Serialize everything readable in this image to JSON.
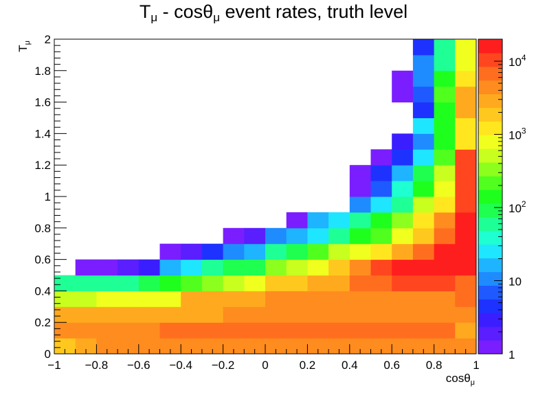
{
  "title": {
    "main": "T",
    "sub1": "μ",
    "mid": " - cosθ",
    "sub2": "μ",
    "tail": " event rates, truth level"
  },
  "chart_data": {
    "type": "heatmap",
    "title": "Tμ - cosθμ event rates, truth level",
    "xlabel": {
      "main": "cosθ",
      "sub": "μ"
    },
    "ylabel": {
      "main": "T",
      "sub": "μ"
    },
    "xlim": [
      -1,
      1
    ],
    "ylim": [
      0,
      2
    ],
    "x_bins": {
      "start": -1,
      "width": 0.1,
      "count": 20
    },
    "y_bins": {
      "start": 0,
      "width": 0.1,
      "count": 20
    },
    "x_ticks": [
      {
        "v": -1,
        "label": "−1"
      },
      {
        "v": -0.8,
        "label": "−0.8"
      },
      {
        "v": -0.6,
        "label": "−0.6"
      },
      {
        "v": -0.4,
        "label": "−0.4"
      },
      {
        "v": -0.2,
        "label": "−0.2"
      },
      {
        "v": 0,
        "label": "0"
      },
      {
        "v": 0.2,
        "label": "0.2"
      },
      {
        "v": 0.4,
        "label": "0.4"
      },
      {
        "v": 0.6,
        "label": "0.6"
      },
      {
        "v": 0.8,
        "label": "0.8"
      },
      {
        "v": 1,
        "label": "1"
      }
    ],
    "y_ticks": [
      {
        "v": 0,
        "label": "0"
      },
      {
        "v": 0.2,
        "label": "0.2"
      },
      {
        "v": 0.4,
        "label": "0.4"
      },
      {
        "v": 0.6,
        "label": "0.6"
      },
      {
        "v": 0.8,
        "label": "0.8"
      },
      {
        "v": 1,
        "label": "1"
      },
      {
        "v": 1.2,
        "label": "1.2"
      },
      {
        "v": 1.4,
        "label": "1.4"
      },
      {
        "v": 1.6,
        "label": "1.6"
      },
      {
        "v": 1.8,
        "label": "1.8"
      },
      {
        "v": 2,
        "label": "2"
      }
    ],
    "z_scale": "log",
    "zlim": [
      1,
      20000
    ],
    "z_ticks": [
      {
        "v": 1,
        "base": "1",
        "exp": ""
      },
      {
        "v": 10,
        "base": "10",
        "exp": ""
      },
      {
        "v": 100,
        "base": "10",
        "exp": "2"
      },
      {
        "v": 1000,
        "base": "10",
        "exp": "3"
      },
      {
        "v": 10000,
        "base": "10",
        "exp": "4"
      }
    ],
    "palette": [
      "#7a1eff",
      "#5a1eff",
      "#3a1eff",
      "#1e32ff",
      "#1e5aff",
      "#1e8cff",
      "#1eb4ff",
      "#1ee6ff",
      "#1effd2",
      "#1eff96",
      "#1eff50",
      "#1eff1e",
      "#50ff1e",
      "#8cff1e",
      "#c8ff1e",
      "#f0ff1e",
      "#ffe61e",
      "#ffc81e",
      "#ffaa1e",
      "#ff8c1e",
      "#ff6e1e",
      "#ff461e",
      "#ff1e1e"
    ],
    "cells": [
      [
        17,
        18,
        19,
        19,
        19,
        19,
        19,
        19,
        19,
        19,
        19,
        19,
        19,
        19,
        19,
        19,
        19,
        19,
        19,
        19
      ],
      [
        19,
        19,
        19,
        19,
        19,
        20,
        20,
        20,
        20,
        20,
        20,
        20,
        20,
        20,
        20,
        20,
        20,
        20,
        20,
        18
      ],
      [
        18,
        18,
        18,
        18,
        18,
        18,
        18,
        18,
        19,
        19,
        19,
        19,
        19,
        19,
        19,
        19,
        19,
        19,
        19,
        19
      ],
      [
        14,
        14,
        15,
        15,
        15,
        15,
        18,
        18,
        18,
        18,
        19,
        19,
        19,
        19,
        19,
        19,
        19,
        19,
        19,
        20
      ],
      [
        9,
        9,
        9,
        9,
        10,
        11,
        12,
        13,
        14,
        15,
        17,
        17,
        18,
        18,
        20,
        20,
        21,
        21,
        21,
        20
      ],
      [
        null,
        0,
        0,
        1,
        2,
        6,
        7,
        9,
        10,
        10,
        13,
        14,
        15,
        17,
        19,
        21,
        22,
        22,
        22,
        22
      ],
      [
        null,
        null,
        null,
        null,
        null,
        0,
        1,
        3,
        5,
        6,
        9,
        10,
        12,
        14,
        15,
        16,
        18,
        20,
        22,
        22
      ],
      [
        null,
        null,
        null,
        null,
        null,
        null,
        null,
        null,
        0,
        1,
        5,
        6,
        7,
        9,
        11,
        12,
        15,
        17,
        20,
        22
      ],
      [
        null,
        null,
        null,
        null,
        null,
        null,
        null,
        null,
        null,
        null,
        null,
        0,
        6,
        7,
        9,
        11,
        13,
        16,
        19,
        22
      ],
      [
        null,
        null,
        null,
        null,
        null,
        null,
        null,
        null,
        null,
        null,
        null,
        null,
        null,
        null,
        5,
        7,
        9,
        14,
        16,
        21
      ],
      [
        null,
        null,
        null,
        null,
        null,
        null,
        null,
        null,
        null,
        null,
        null,
        null,
        null,
        null,
        0,
        4,
        8,
        11,
        15,
        21
      ],
      [
        null,
        null,
        null,
        null,
        null,
        null,
        null,
        null,
        null,
        null,
        null,
        null,
        null,
        null,
        0,
        3,
        6,
        10,
        14,
        21
      ],
      [
        null,
        null,
        null,
        null,
        null,
        null,
        null,
        null,
        null,
        null,
        null,
        null,
        null,
        null,
        null,
        0,
        3,
        7,
        12,
        21
      ],
      [
        null,
        null,
        null,
        null,
        null,
        null,
        null,
        null,
        null,
        null,
        null,
        null,
        null,
        null,
        null,
        null,
        2,
        5,
        11,
        16
      ],
      [
        null,
        null,
        null,
        null,
        null,
        null,
        null,
        null,
        null,
        null,
        null,
        null,
        null,
        null,
        null,
        null,
        null,
        7,
        11,
        16
      ],
      [
        null,
        null,
        null,
        null,
        null,
        null,
        null,
        null,
        null,
        null,
        null,
        null,
        null,
        null,
        null,
        null,
        null,
        3,
        11,
        18
      ],
      [
        null,
        null,
        null,
        null,
        null,
        null,
        null,
        null,
        null,
        null,
        null,
        null,
        null,
        null,
        null,
        null,
        0,
        4,
        12,
        18
      ],
      [
        null,
        null,
        null,
        null,
        null,
        null,
        null,
        null,
        null,
        null,
        null,
        null,
        null,
        null,
        null,
        null,
        0,
        5,
        11,
        16
      ],
      [
        null,
        null,
        null,
        null,
        null,
        null,
        null,
        null,
        null,
        null,
        null,
        null,
        null,
        null,
        null,
        null,
        null,
        5,
        9,
        15
      ],
      [
        null,
        null,
        null,
        null,
        null,
        null,
        null,
        null,
        null,
        null,
        null,
        null,
        null,
        null,
        null,
        null,
        null,
        3,
        9,
        15
      ]
    ]
  }
}
